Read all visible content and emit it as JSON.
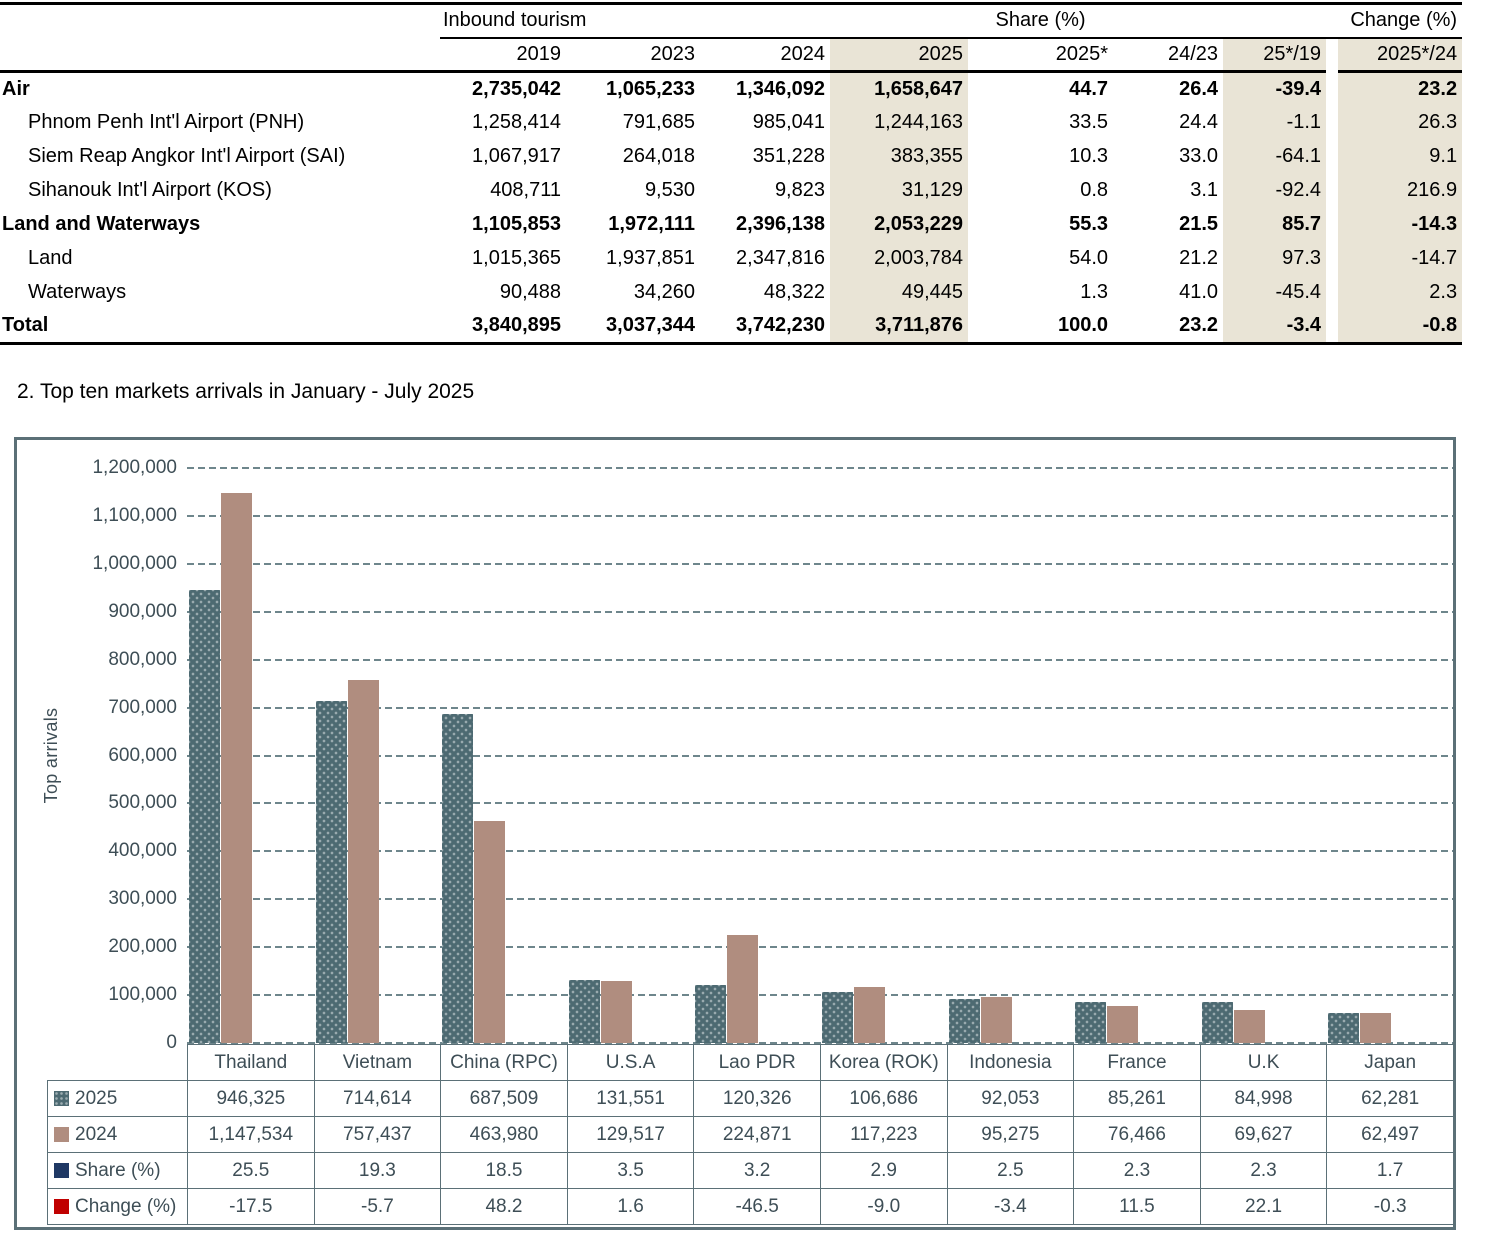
{
  "inbound_table": {
    "group_headers": [
      {
        "label": "Inbound tourism",
        "span": 4
      },
      {
        "label": "Share (%)",
        "span": 1
      },
      {
        "label": "Change (%)",
        "span": 4
      }
    ],
    "col_headers": [
      "2019",
      "2023",
      "2024",
      "2025",
      "2025*",
      "24/23",
      "25*/19",
      "2025*/24"
    ],
    "rows": [
      {
        "label": "Air",
        "bold": true,
        "indent": false,
        "values": [
          "2,735,042",
          "1,065,233",
          "1,346,092",
          "1,658,647",
          "44.7",
          "26.4",
          "-39.4",
          "23.2"
        ]
      },
      {
        "label": "Phnom Penh Int'l Airport (PNH)",
        "bold": false,
        "indent": true,
        "values": [
          "1,258,414",
          "791,685",
          "985,041",
          "1,244,163",
          "33.5",
          "24.4",
          "-1.1",
          "26.3"
        ]
      },
      {
        "label": "Siem Reap Angkor Int'l Airport (SAI)",
        "bold": false,
        "indent": true,
        "values": [
          "1,067,917",
          "264,018",
          "351,228",
          "383,355",
          "10.3",
          "33.0",
          "-64.1",
          "9.1"
        ]
      },
      {
        "label": "Sihanouk Int'l Airport (KOS)",
        "bold": false,
        "indent": true,
        "values": [
          "408,711",
          "9,530",
          "9,823",
          "31,129",
          "0.8",
          "3.1",
          "-92.4",
          "216.9"
        ]
      },
      {
        "label": "Land and Waterways",
        "bold": true,
        "indent": false,
        "values": [
          "1,105,853",
          "1,972,111",
          "2,396,138",
          "2,053,229",
          "55.3",
          "21.5",
          "85.7",
          "-14.3"
        ]
      },
      {
        "label": "Land",
        "bold": false,
        "indent": true,
        "values": [
          "1,015,365",
          "1,937,851",
          "2,347,816",
          "2,003,784",
          "54.0",
          "21.2",
          "97.3",
          "-14.7"
        ]
      },
      {
        "label": "Waterways",
        "bold": false,
        "indent": true,
        "values": [
          "90,488",
          "34,260",
          "48,322",
          "49,445",
          "1.3",
          "41.0",
          "-45.4",
          "2.3"
        ]
      },
      {
        "label": "Total",
        "bold": true,
        "indent": false,
        "values": [
          "3,840,895",
          "3,037,344",
          "3,742,230",
          "3,711,876",
          "100.0",
          "23.2",
          "-3.4",
          "-0.8"
        ]
      }
    ],
    "highlight_color": "#e9e4d6"
  },
  "section_title": "2. Top ten markets arrivals in January - July 2025",
  "chart_data": {
    "type": "bar",
    "title": "",
    "ylabel": "Top arrivals",
    "ylim": [
      0,
      1200000
    ],
    "ytick_step": 100000,
    "ytick_labels": [
      "0",
      "100,000",
      "200,000",
      "300,000",
      "400,000",
      "500,000",
      "600,000",
      "700,000",
      "800,000",
      "900,000",
      "1,000,000",
      "1,100,000",
      "1,200,000"
    ],
    "grid": "dashed-horizontal",
    "legend_position": "table-below",
    "categories": [
      "Thailand",
      "Vietnam",
      "China (RPC)",
      "U.S.A",
      "Lao PDR",
      "Korea (ROK)",
      "Indonesia",
      "France",
      "U.K",
      "Japan"
    ],
    "series": [
      {
        "name": "2025",
        "bars": true,
        "color": "#4d6a72",
        "values": [
          946325,
          714614,
          687509,
          131551,
          120326,
          106686,
          92053,
          85261,
          84998,
          62281
        ],
        "display": [
          "946,325",
          "714,614",
          "687,509",
          "131,551",
          "120,326",
          "106,686",
          "92,053",
          "85,261",
          "84,998",
          "62,281"
        ]
      },
      {
        "name": "2024",
        "bars": true,
        "color": "#b08d7f",
        "values": [
          1147534,
          757437,
          463980,
          129517,
          224871,
          117223,
          95275,
          76466,
          69627,
          62497
        ],
        "display": [
          "1,147,534",
          "757,437",
          "463,980",
          "129,517",
          "224,871",
          "117,223",
          "95,275",
          "76,466",
          "69,627",
          "62,497"
        ]
      },
      {
        "name": "Share (%)",
        "bars": false,
        "color": "#1f3864",
        "values": [
          25.5,
          19.3,
          18.5,
          3.5,
          3.2,
          2.9,
          2.5,
          2.3,
          2.3,
          1.7
        ],
        "display": [
          "25.5",
          "19.3",
          "18.5",
          "3.5",
          "3.2",
          "2.9",
          "2.5",
          "2.3",
          "2.3",
          "1.7"
        ]
      },
      {
        "name": "Change (%)",
        "bars": false,
        "color": "#c00000",
        "values": [
          -17.5,
          -5.7,
          48.2,
          1.6,
          -46.5,
          -9.0,
          -3.4,
          11.5,
          22.1,
          -0.3
        ],
        "display": [
          "-17.5",
          "-5.7",
          "48.2",
          "1.6",
          "-46.5",
          "-9.0",
          "-3.4",
          "11.5",
          "22.1",
          "-0.3"
        ]
      }
    ]
  }
}
